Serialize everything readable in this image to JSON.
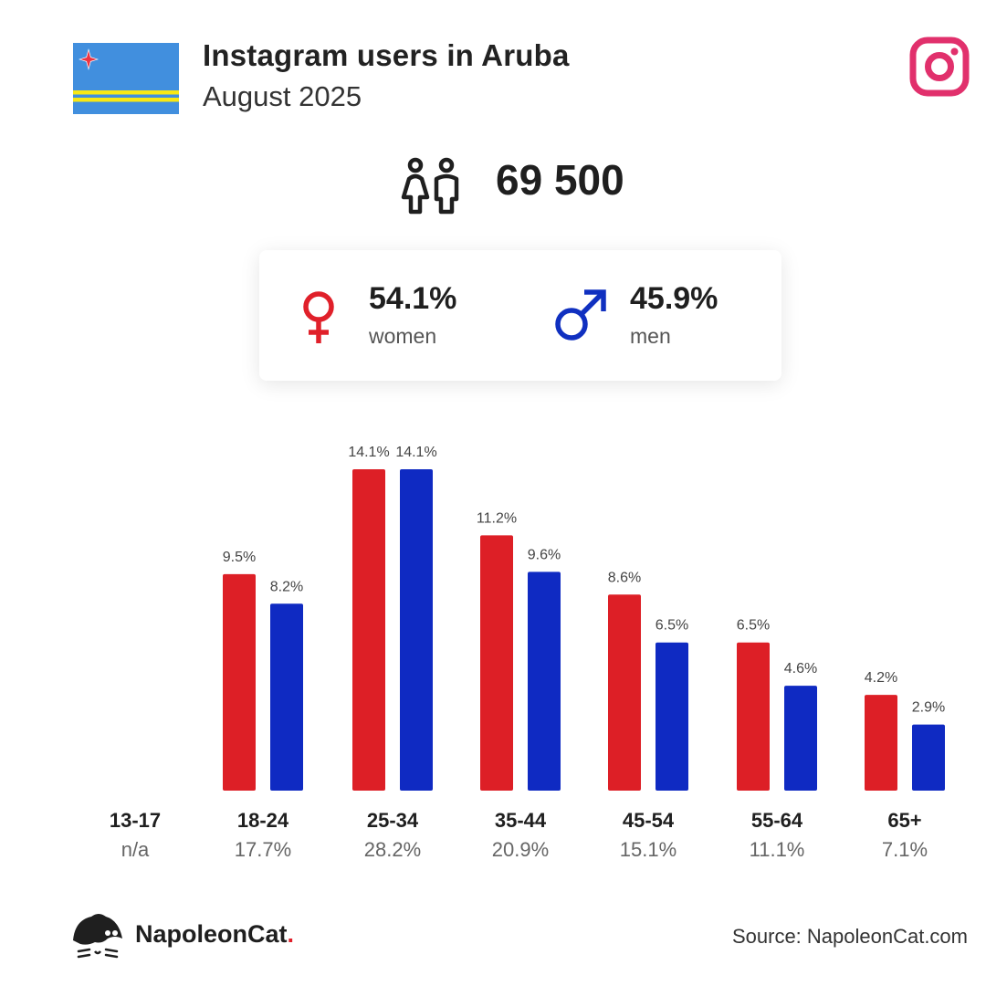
{
  "header": {
    "title": "Instagram users in Aruba",
    "subtitle": "August 2025"
  },
  "total": {
    "value": "69 500",
    "icon": "people-icon"
  },
  "gender": {
    "women": {
      "value": "54.1%",
      "label": "women",
      "icon": "female-icon",
      "color": "#e0202a"
    },
    "men": {
      "value": "45.9%",
      "label": "men",
      "icon": "male-icon",
      "color": "#1030c0"
    }
  },
  "colors": {
    "women": "#dd1f26",
    "men": "#0f2ac2",
    "instagram": "#e1306c",
    "flag_blue": "#418fde",
    "flag_yellow": "#f9e814",
    "flag_red": "#ef3340"
  },
  "chart_data": {
    "type": "bar",
    "categories": [
      "13-17",
      "18-24",
      "25-34",
      "35-44",
      "45-54",
      "55-64",
      "65+"
    ],
    "category_totals": [
      "n/a",
      "17.7%",
      "28.2%",
      "20.9%",
      "15.1%",
      "11.1%",
      "7.1%"
    ],
    "series": [
      {
        "name": "women",
        "values": [
          null,
          9.5,
          14.1,
          11.2,
          8.6,
          6.5,
          4.2
        ],
        "labels": [
          "",
          "9.5%",
          "14.1%",
          "11.2%",
          "8.6%",
          "6.5%",
          "4.2%"
        ]
      },
      {
        "name": "men",
        "values": [
          null,
          8.2,
          14.1,
          9.6,
          6.5,
          4.6,
          2.9
        ],
        "labels": [
          "",
          "8.2%",
          "14.1%",
          "9.6%",
          "6.5%",
          "4.6%",
          "2.9%"
        ]
      }
    ],
    "ylim": [
      0,
      14.1
    ],
    "grid": false
  },
  "footer": {
    "brand_name": "NapoleonCat",
    "brand_dot": ".",
    "source": "Source: NapoleonCat.com"
  }
}
